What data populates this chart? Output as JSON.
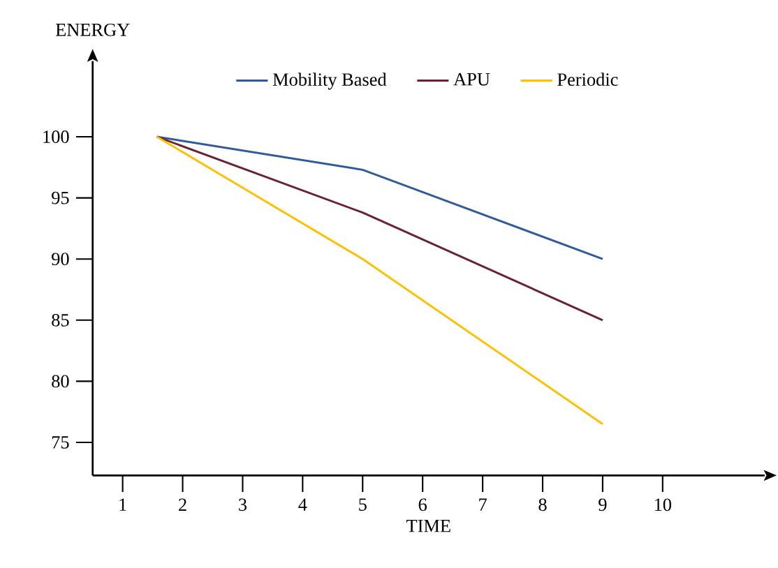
{
  "chart_data": {
    "type": "line",
    "xlabel": "TIME",
    "ylabel": "ENERGY",
    "xlim": [
      0.5,
      11.7
    ],
    "ylim": [
      72.3,
      106.2
    ],
    "xticks": [
      1,
      2,
      3,
      4,
      5,
      6,
      7,
      8,
      9,
      10
    ],
    "yticks": [
      75,
      80,
      85,
      90,
      95,
      100
    ],
    "series": [
      {
        "name": "Mobility Based",
        "color": "#2e5c9a",
        "x": [
          1.57,
          5,
          9
        ],
        "values": [
          100,
          97.3,
          90
        ]
      },
      {
        "name": "APU",
        "color": "#6b2230",
        "x": [
          1.57,
          5,
          9
        ],
        "values": [
          100,
          93.8,
          85
        ]
      },
      {
        "name": "Periodic",
        "color": "#ffc000",
        "x": [
          1.57,
          5,
          9
        ],
        "values": [
          100,
          90,
          76.5
        ]
      }
    ],
    "legend": "top",
    "grid": false,
    "marker": "none",
    "line_style": "solid"
  }
}
